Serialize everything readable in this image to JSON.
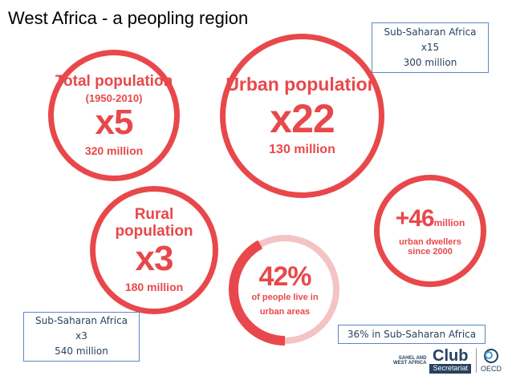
{
  "title": "West Africa - a peopling region",
  "circles": {
    "total": {
      "heading": "Total population",
      "sub": "(1950-2010)",
      "multiplier": "x5",
      "value": "320 million"
    },
    "urban": {
      "heading": "Urban population",
      "multiplier": "x22",
      "value": "130 million"
    },
    "rural": {
      "heading": "Rural population",
      "multiplier": "x3",
      "value": "180 million"
    },
    "dwellers": {
      "big": "+46",
      "unit": "million",
      "line1": "urban dwellers",
      "line2": "since 2000"
    },
    "share": {
      "big": "42%",
      "line1": "of people live in",
      "line2": "urban areas",
      "fill_fraction": 0.42
    }
  },
  "notes": {
    "top_right": {
      "l1": "Sub-Saharan Africa",
      "l2": "x15",
      "l3": "300 million"
    },
    "bottom_left": {
      "l1": "Sub-Saharan Africa",
      "l2": "x3",
      "l3": "540 million"
    },
    "bottom_mid": "36% in Sub-Saharan Africa"
  },
  "logo": {
    "small1": "SAHEL AND",
    "small2": "WEST AFRICA",
    "club": "Club",
    "secretariat": "Secretariat",
    "oecd": "OECD"
  },
  "colors": {
    "accent": "#e8484b",
    "navy": "#27425f",
    "box_border": "#5a87c6"
  },
  "icon": "oecd-globe-icon"
}
